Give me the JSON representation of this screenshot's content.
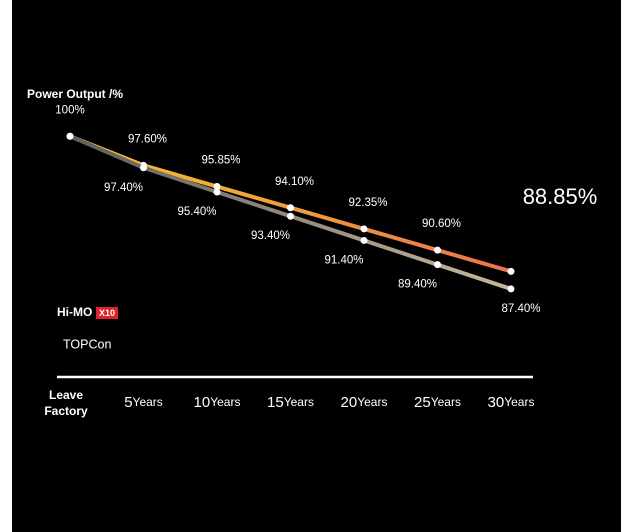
{
  "chart_data": {
    "type": "line",
    "y_title": "Power Output /%",
    "categories": [
      "Leave Factory",
      "5",
      "10",
      "15",
      "20",
      "25",
      "30"
    ],
    "x_unit": "Years",
    "ylim": [
      85,
      102
    ],
    "series": [
      {
        "name": "Hi-MO",
        "badge": "X10",
        "colors": [
          "#f7c72a",
          "#e9744c"
        ],
        "values": [
          100,
          97.6,
          95.85,
          94.1,
          92.35,
          90.6,
          88.85
        ],
        "value_labels": [
          "100%",
          "97.60%",
          "95.85%",
          "94.10%",
          "92.35%",
          "90.60%",
          "88.85%"
        ]
      },
      {
        "name": "TOPCon",
        "colors": [
          "#5e5e5e",
          "#c9b79a"
        ],
        "values": [
          100,
          97.4,
          95.4,
          93.4,
          91.4,
          89.4,
          87.4
        ],
        "value_labels": [
          null,
          "97.40%",
          "95.40%",
          "93.40%",
          "91.40%",
          "89.40%",
          "87.40%"
        ]
      }
    ]
  }
}
